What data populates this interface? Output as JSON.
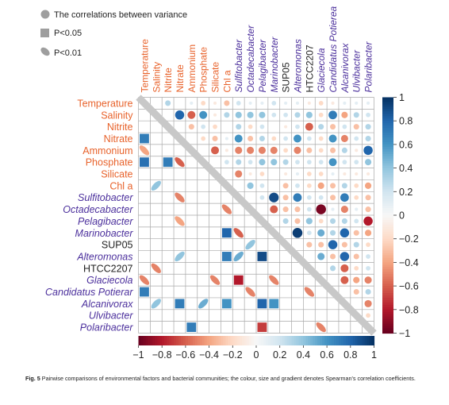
{
  "legend": {
    "items": [
      {
        "shape": "circle",
        "label": "The correlations between variance"
      },
      {
        "shape": "square",
        "label": "P<0.05"
      },
      {
        "shape": "ellipse",
        "label": "P<0.01"
      }
    ]
  },
  "caption": {
    "label": "Fig. 5",
    "text": "Pairwise comparisons of environmental factors and bacterial communities; the colour, size and gradient denotes Spearman's correlation coefficients."
  },
  "colors": {
    "environmental_label": "#e8632c",
    "bacterial_label": "#4b2f9c",
    "neutral_label": "#222222",
    "positive": "#1f4e8c",
    "negative": "#8b1a1a",
    "zero": "#f7f7f7",
    "grid": "#a9a9a9"
  },
  "chart_data": {
    "type": "heatmap",
    "variables": [
      {
        "name": "Temperature",
        "group": "environmental"
      },
      {
        "name": "Salinity",
        "group": "environmental"
      },
      {
        "name": "Nitrite",
        "group": "environmental"
      },
      {
        "name": "Nitrate",
        "group": "environmental"
      },
      {
        "name": "Ammonium",
        "group": "environmental"
      },
      {
        "name": "Phosphate",
        "group": "environmental"
      },
      {
        "name": "Silicate",
        "group": "environmental"
      },
      {
        "name": "Chl a",
        "group": "environmental"
      },
      {
        "name": "Sulfitobacter",
        "group": "bacterial"
      },
      {
        "name": "Octadecabacter",
        "group": "bacterial"
      },
      {
        "name": "Pelagibacter",
        "group": "bacterial"
      },
      {
        "name": "Marinobacter",
        "group": "bacterial"
      },
      {
        "name": "SUP05",
        "group": "neutral"
      },
      {
        "name": "Alteromonas",
        "group": "bacterial"
      },
      {
        "name": "HTCC2207",
        "group": "neutral"
      },
      {
        "name": "Glaciecola",
        "group": "bacterial"
      },
      {
        "name": "Candidatus Potierea",
        "group": "bacterial"
      },
      {
        "name": "Alcanivorax",
        "group": "bacterial"
      },
      {
        "name": "Ulvibacter",
        "group": "bacterial"
      },
      {
        "name": "Polaribacter",
        "group": "bacterial"
      }
    ],
    "row_labels": [
      "Temperature",
      "Salinity",
      "Nitrite",
      "Nitrate",
      "Ammonium",
      "Phosphate",
      "Silicate",
      "Chl a",
      "Sulfitobacter",
      "Octadecabacter",
      "Pelagibacter",
      "Marinobacter",
      "SUP05",
      "Alteromonas",
      "HTCC2207",
      "Glaciecola",
      "Candidatus Potierar",
      "Alcanivorax",
      "Ulvibacter",
      "Polaribacter"
    ],
    "col_labels": [
      "Temperature",
      "Salinity",
      "Nitrite",
      "Nitrate",
      "Ammonium",
      "Phosphate",
      "Silicate",
      "Chl a",
      "Sulfitobacter",
      "Octadecabacter",
      "Pelagibacter",
      "Marinobacter",
      "SUP05",
      "Alteromonas",
      "HTCC2207",
      "Glaciecola",
      "Candidatus Potierea",
      "Alcanivorax",
      "Ulvibacter",
      "Polaribacter"
    ],
    "upper_circles": [
      [
        0,
        2,
        0.3
      ],
      [
        0,
        4,
        0.1
      ],
      [
        0,
        5,
        -0.2
      ],
      [
        0,
        6,
        -0.1
      ],
      [
        0,
        7,
        -0.3
      ],
      [
        0,
        8,
        0.2
      ],
      [
        0,
        9,
        0.1
      ],
      [
        0,
        10,
        0.1
      ],
      [
        0,
        11,
        0.2
      ],
      [
        0,
        12,
        0.1
      ],
      [
        0,
        13,
        0.1
      ],
      [
        0,
        14,
        -0.1
      ],
      [
        0,
        15,
        -0.2
      ],
      [
        0,
        16,
        -0.1
      ],
      [
        0,
        17,
        0.1
      ],
      [
        0,
        18,
        0.1
      ],
      [
        0,
        19,
        0.1
      ],
      [
        1,
        3,
        0.8
      ],
      [
        1,
        4,
        -0.6
      ],
      [
        1,
        5,
        0.6
      ],
      [
        1,
        6,
        -0.1
      ],
      [
        1,
        7,
        0.3
      ],
      [
        1,
        8,
        0.4
      ],
      [
        1,
        9,
        0.4
      ],
      [
        1,
        10,
        0.4
      ],
      [
        1,
        11,
        0.2
      ],
      [
        1,
        12,
        0.2
      ],
      [
        1,
        13,
        0.3
      ],
      [
        1,
        14,
        0.4
      ],
      [
        1,
        15,
        -0.2
      ],
      [
        1,
        16,
        0.7
      ],
      [
        1,
        17,
        -0.4
      ],
      [
        1,
        18,
        0.3
      ],
      [
        1,
        19,
        0.2
      ],
      [
        2,
        4,
        -0.3
      ],
      [
        2,
        5,
        0.2
      ],
      [
        2,
        6,
        -0.2
      ],
      [
        2,
        8,
        0.3
      ],
      [
        2,
        9,
        -0.2
      ],
      [
        2,
        10,
        0.2
      ],
      [
        2,
        12,
        -0.1
      ],
      [
        2,
        13,
        0.2
      ],
      [
        2,
        14,
        -0.6
      ],
      [
        2,
        15,
        0.3
      ],
      [
        2,
        16,
        -0.3
      ],
      [
        2,
        17,
        0.2
      ],
      [
        2,
        18,
        -0.3
      ],
      [
        2,
        19,
        0.3
      ],
      [
        3,
        5,
        -0.2
      ],
      [
        3,
        6,
        -0.3
      ],
      [
        3,
        7,
        0.1
      ],
      [
        3,
        8,
        0.6
      ],
      [
        3,
        9,
        -0.3
      ],
      [
        3,
        10,
        0.3
      ],
      [
        3,
        11,
        -0.2
      ],
      [
        3,
        12,
        0.2
      ],
      [
        3,
        13,
        0.6
      ],
      [
        3,
        14,
        0.2
      ],
      [
        3,
        15,
        -0.2
      ],
      [
        3,
        16,
        0.6
      ],
      [
        3,
        17,
        -0.5
      ],
      [
        3,
        18,
        0.2
      ],
      [
        3,
        19,
        0.3
      ],
      [
        4,
        6,
        -0.6
      ],
      [
        4,
        7,
        -0.1
      ],
      [
        4,
        8,
        -0.5
      ],
      [
        4,
        9,
        -0.5
      ],
      [
        4,
        10,
        -0.5
      ],
      [
        4,
        11,
        -0.5
      ],
      [
        4,
        12,
        -0.2
      ],
      [
        4,
        13,
        -0.5
      ],
      [
        4,
        14,
        -0.3
      ],
      [
        4,
        15,
        -0.2
      ],
      [
        4,
        16,
        -0.3
      ],
      [
        4,
        17,
        0.3
      ],
      [
        4,
        18,
        -0.1
      ],
      [
        4,
        19,
        0.8
      ],
      [
        5,
        7,
        0.2
      ],
      [
        5,
        8,
        0.3
      ],
      [
        5,
        9,
        0.2
      ],
      [
        5,
        10,
        0.4
      ],
      [
        5,
        11,
        0.4
      ],
      [
        5,
        12,
        0.3
      ],
      [
        5,
        13,
        0.2
      ],
      [
        5,
        14,
        0.2
      ],
      [
        5,
        15,
        0.2
      ],
      [
        5,
        16,
        0.6
      ],
      [
        5,
        17,
        0.2
      ],
      [
        5,
        18,
        0.2
      ],
      [
        5,
        19,
        0.4
      ],
      [
        6,
        8,
        -0.5
      ],
      [
        6,
        9,
        -0.1
      ],
      [
        6,
        10,
        -0.2
      ],
      [
        6,
        12,
        -0.1
      ],
      [
        6,
        13,
        0.1
      ],
      [
        6,
        14,
        -0.2
      ],
      [
        6,
        15,
        -0.2
      ],
      [
        6,
        16,
        0.1
      ],
      [
        6,
        17,
        -0.1
      ],
      [
        6,
        18,
        -0.1
      ],
      [
        6,
        19,
        -0.1
      ],
      [
        7,
        9,
        0.4
      ],
      [
        7,
        10,
        0.2
      ],
      [
        7,
        12,
        -0.3
      ],
      [
        7,
        13,
        0.2
      ],
      [
        7,
        14,
        -0.2
      ],
      [
        7,
        15,
        -0.4
      ],
      [
        7,
        16,
        -0.3
      ],
      [
        7,
        17,
        0.3
      ],
      [
        7,
        18,
        -0.2
      ],
      [
        7,
        19,
        -0.4
      ],
      [
        8,
        10,
        0.2
      ],
      [
        8,
        11,
        0.9
      ],
      [
        8,
        12,
        -0.3
      ],
      [
        8,
        13,
        0.7
      ],
      [
        8,
        14,
        0.2
      ],
      [
        8,
        15,
        0.2
      ],
      [
        8,
        16,
        -0.3
      ],
      [
        8,
        17,
        0.7
      ],
      [
        8,
        18,
        -0.2
      ],
      [
        8,
        19,
        -0.3
      ],
      [
        9,
        11,
        -0.6
      ],
      [
        9,
        12,
        -0.3
      ],
      [
        9,
        13,
        -0.3
      ],
      [
        9,
        14,
        0.2
      ],
      [
        9,
        15,
        -0.95
      ],
      [
        9,
        16,
        0.1
      ],
      [
        9,
        17,
        -0.5
      ],
      [
        9,
        18,
        0.1
      ],
      [
        9,
        19,
        -0.3
      ],
      [
        10,
        12,
        0.3
      ],
      [
        10,
        13,
        -0.3
      ],
      [
        10,
        14,
        0.4
      ],
      [
        10,
        15,
        -0.2
      ],
      [
        10,
        16,
        0.3
      ],
      [
        10,
        17,
        0.3
      ],
      [
        10,
        18,
        0.2
      ],
      [
        10,
        19,
        -0.8
      ],
      [
        11,
        13,
        0.95
      ],
      [
        11,
        14,
        0.2
      ],
      [
        11,
        15,
        0.5
      ],
      [
        11,
        16,
        0.3
      ],
      [
        11,
        17,
        0.8
      ],
      [
        11,
        18,
        -0.3
      ],
      [
        11,
        19,
        -0.4
      ],
      [
        12,
        14,
        -0.3
      ],
      [
        12,
        15,
        -0.3
      ],
      [
        12,
        16,
        0.8
      ],
      [
        12,
        17,
        -0.3
      ],
      [
        12,
        18,
        0.3
      ],
      [
        12,
        19,
        -0.2
      ],
      [
        13,
        15,
        0.5
      ],
      [
        13,
        16,
        -0.3
      ],
      [
        13,
        17,
        0.8
      ],
      [
        13,
        18,
        -0.3
      ],
      [
        13,
        19,
        0.2
      ],
      [
        14,
        16,
        0.3
      ],
      [
        14,
        17,
        -0.6
      ],
      [
        14,
        18,
        -0.2
      ],
      [
        14,
        19,
        0.2
      ],
      [
        15,
        17,
        -0.6
      ],
      [
        15,
        18,
        -0.4
      ],
      [
        15,
        19,
        -0.5
      ],
      [
        16,
        18,
        -0.3
      ],
      [
        16,
        19,
        0.3
      ],
      [
        17,
        19,
        -0.5
      ],
      [
        18,
        19,
        -0.2
      ]
    ],
    "lower_marks": [
      [
        3,
        0,
        "square",
        0.7
      ],
      [
        4,
        0,
        "ellipse",
        -0.4
      ],
      [
        5,
        0,
        "square",
        0.75
      ],
      [
        5,
        2,
        "square",
        0.7
      ],
      [
        5,
        3,
        "ellipse",
        -0.6
      ],
      [
        7,
        1,
        "ellipse",
        0.4
      ],
      [
        8,
        3,
        "ellipse",
        -0.5
      ],
      [
        9,
        7,
        "ellipse",
        -0.5
      ],
      [
        10,
        3,
        "ellipse",
        -0.4
      ],
      [
        11,
        7,
        "square",
        0.8
      ],
      [
        11,
        8,
        "ellipse",
        -0.6
      ],
      [
        12,
        9,
        "ellipse",
        0.4
      ],
      [
        13,
        3,
        "ellipse",
        0.4
      ],
      [
        13,
        7,
        "square",
        0.7
      ],
      [
        13,
        8,
        "ellipse",
        0.5
      ],
      [
        13,
        10,
        "square",
        0.9
      ],
      [
        14,
        1,
        "ellipse",
        -0.5
      ],
      [
        15,
        0,
        "ellipse",
        -0.5
      ],
      [
        15,
        6,
        "ellipse",
        -0.5
      ],
      [
        15,
        8,
        "square",
        -0.8
      ],
      [
        15,
        11,
        "ellipse",
        -0.5
      ],
      [
        16,
        0,
        "square",
        0.7
      ],
      [
        16,
        9,
        "ellipse",
        -0.5
      ],
      [
        16,
        14,
        "ellipse",
        -0.5
      ],
      [
        17,
        1,
        "ellipse",
        0.4
      ],
      [
        17,
        3,
        "square",
        0.7
      ],
      [
        17,
        5,
        "ellipse",
        0.5
      ],
      [
        17,
        7,
        "square",
        0.6
      ],
      [
        17,
        10,
        "square",
        0.8
      ],
      [
        17,
        11,
        "square",
        0.6
      ],
      [
        19,
        4,
        "square",
        0.7
      ],
      [
        19,
        10,
        "square",
        -0.7
      ],
      [
        19,
        15,
        "ellipse",
        -0.5
      ]
    ],
    "colorbar_vertical": {
      "range": [
        -1,
        1
      ],
      "ticks": [
        "1",
        "0.8",
        "0.6",
        "0.4",
        "0.2",
        "0",
        "−0.2",
        "−0.4",
        "−0.6",
        "−0.8",
        "−1"
      ],
      "tick_values": [
        1,
        0.8,
        0.6,
        0.4,
        0.2,
        0,
        -0.2,
        -0.4,
        -0.6,
        -0.8,
        -1
      ]
    },
    "colorbar_horizontal": {
      "range": [
        -1,
        1
      ],
      "ticks": [
        "−1",
        "−0.8",
        "−0.6",
        "−0.4",
        "−0.2",
        "0",
        "0.2",
        "0.4",
        "0.6",
        "0.8",
        "1"
      ],
      "tick_values": [
        -1,
        -0.8,
        -0.6,
        -0.4,
        -0.2,
        0,
        0.2,
        0.4,
        0.6,
        0.8,
        1
      ]
    }
  }
}
